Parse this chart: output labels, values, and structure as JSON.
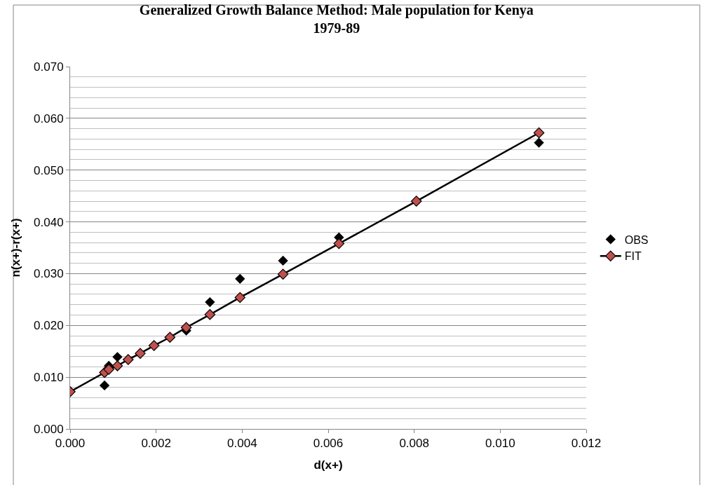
{
  "chart_data": {
    "type": "scatter",
    "title": "Generalized Growth Balance Method: Male population for Kenya\n1979-89",
    "xlabel": "d(x+)",
    "ylabel": "n(x+)-r(x+)",
    "series": [
      {
        "name": "OBS",
        "color": "#000000",
        "marker": "diamond",
        "x": [
          0.0008,
          0.0009,
          0.0011,
          0.00135,
          0.00163,
          0.00195,
          0.00232,
          0.0027,
          0.00325,
          0.00395,
          0.00495,
          0.00625,
          0.00805,
          0.0109
        ],
        "values": [
          0.0084,
          0.0122,
          0.0139,
          null,
          null,
          null,
          null,
          0.019,
          0.0245,
          0.029,
          0.0325,
          0.037,
          null,
          0.0553
        ]
      },
      {
        "name": "FIT",
        "type": "line",
        "color": "#c0504d",
        "marker": "diamond",
        "line_style": "solid",
        "x": [
          0.0,
          0.0008,
          0.0009,
          0.0011,
          0.00135,
          0.00163,
          0.00195,
          0.00232,
          0.0027,
          0.00325,
          0.00395,
          0.00495,
          0.00625,
          0.00805,
          0.0109
        ],
        "values": [
          0.0072,
          0.0109,
          0.0115,
          0.0122,
          0.0134,
          0.0146,
          0.0161,
          0.0177,
          0.0196,
          0.0221,
          0.0254,
          0.0299,
          0.0358,
          0.044,
          0.0572
        ]
      }
    ],
    "xlim": [
      0,
      0.012
    ],
    "xticks": [
      {
        "value": 0,
        "label": "0.000"
      },
      {
        "value": 0.002,
        "label": "0.002"
      },
      {
        "value": 0.004,
        "label": "0.004"
      },
      {
        "value": 0.006,
        "label": "0.006"
      },
      {
        "value": 0.008,
        "label": "0.008"
      },
      {
        "value": 0.01,
        "label": "0.010"
      },
      {
        "value": 0.012,
        "label": "0.012"
      }
    ],
    "ylim": [
      0,
      0.07
    ],
    "yticks": [
      {
        "value": 0,
        "label": "0.000"
      },
      {
        "value": 0.01,
        "label": "0.010"
      },
      {
        "value": 0.02,
        "label": "0.020"
      },
      {
        "value": 0.03,
        "label": "0.030"
      },
      {
        "value": 0.04,
        "label": "0.040"
      },
      {
        "value": 0.05,
        "label": "0.050"
      },
      {
        "value": 0.06,
        "label": "0.060"
      },
      {
        "value": 0.07,
        "label": "0.070"
      }
    ],
    "grid": "y",
    "legend": "right"
  }
}
